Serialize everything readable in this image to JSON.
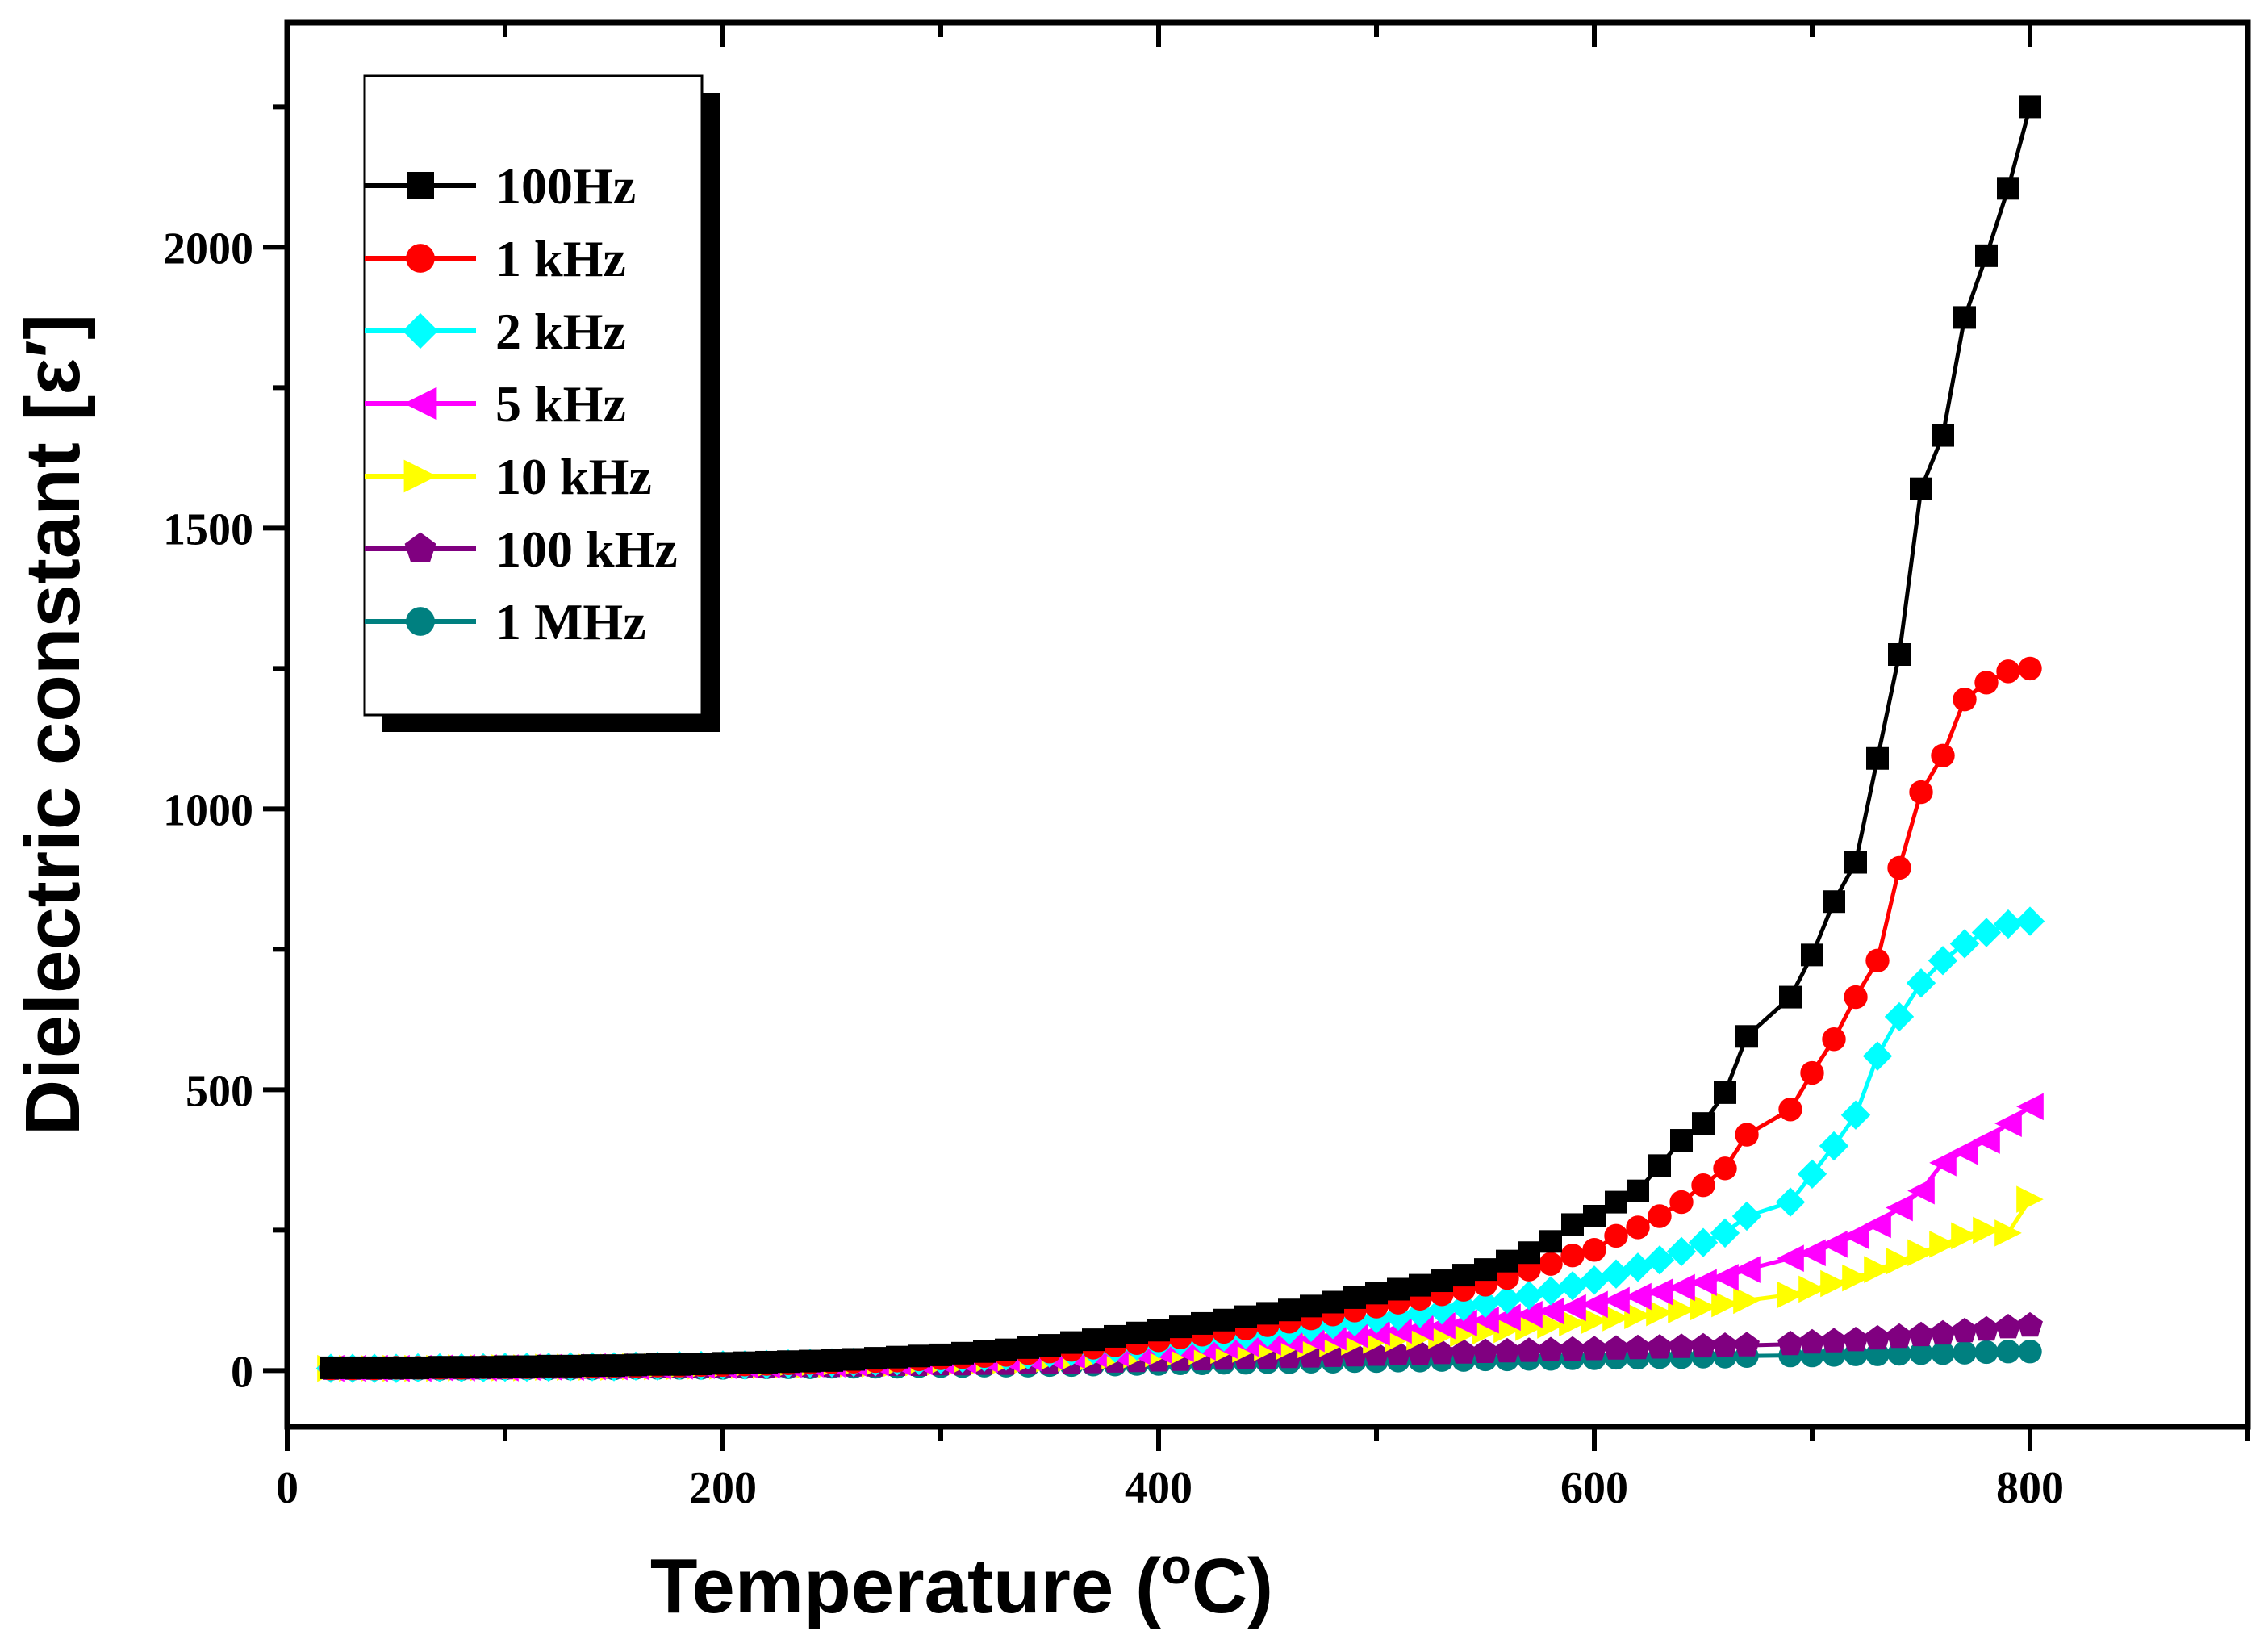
{
  "chart_data": {
    "type": "line",
    "title": "",
    "xlabel": "Temperature (",
    "xlabel_unit_sup": "o",
    "xlabel_unit": "C)",
    "ylabel": "Dielectric constant [ε′]",
    "xlim": [
      0,
      900
    ],
    "ylim": [
      -100,
      2400
    ],
    "xticks": [
      0,
      200,
      400,
      600,
      800
    ],
    "yticks": [
      0,
      500,
      1000,
      1500,
      2000
    ],
    "legend_position": "top-left",
    "x": [
      20,
      30,
      40,
      50,
      60,
      70,
      80,
      90,
      100,
      110,
      120,
      130,
      140,
      150,
      160,
      170,
      180,
      190,
      200,
      210,
      220,
      230,
      240,
      250,
      260,
      270,
      280,
      290,
      300,
      310,
      320,
      330,
      340,
      350,
      360,
      370,
      380,
      390,
      400,
      410,
      420,
      430,
      440,
      450,
      460,
      470,
      480,
      490,
      500,
      510,
      520,
      530,
      540,
      550,
      560,
      570,
      580,
      590,
      600,
      610,
      620,
      630,
      640,
      650,
      660,
      670,
      690,
      700,
      710,
      720,
      730,
      740,
      750,
      760,
      770,
      780,
      790,
      800
    ],
    "series": [
      {
        "name": "100Hz",
        "color": "#000000",
        "marker": "square",
        "values": [
          5,
          5,
          5,
          5,
          5,
          6,
          6,
          6,
          7,
          7,
          8,
          8,
          9,
          9,
          10,
          11,
          11,
          12,
          13,
          14,
          15,
          16,
          17,
          18,
          20,
          22,
          24,
          26,
          28,
          31,
          34,
          37,
          41,
          45,
          50,
          55,
          61,
          67,
          72,
          78,
          84,
          90,
          96,
          102,
          108,
          115,
          122,
          130,
          138,
          145,
          152,
          160,
          170,
          180,
          195,
          210,
          230,
          260,
          275,
          300,
          320,
          365,
          410,
          440,
          495,
          595,
          665,
          740,
          835,
          905,
          1090,
          1275,
          1570,
          1665,
          1875,
          1985,
          2105,
          2250
        ]
      },
      {
        "name": "1 kHz",
        "color": "#ff0000",
        "marker": "circle",
        "values": [
          4,
          4,
          4,
          5,
          5,
          5,
          5,
          6,
          6,
          6,
          7,
          7,
          7,
          8,
          8,
          9,
          9,
          10,
          10,
          11,
          12,
          13,
          14,
          15,
          16,
          17,
          18,
          20,
          22,
          24,
          26,
          28,
          31,
          34,
          37,
          41,
          45,
          49,
          54,
          59,
          64,
          69,
          75,
          81,
          87,
          93,
          100,
          107,
          114,
          121,
          128,
          136,
          144,
          153,
          165,
          180,
          190,
          205,
          215,
          240,
          255,
          275,
          300,
          330,
          360,
          420,
          465,
          530,
          590,
          665,
          730,
          895,
          1030,
          1095,
          1195,
          1225,
          1245,
          1250
        ]
      },
      {
        "name": "2 kHz",
        "color": "#00ffff",
        "marker": "diamond",
        "values": [
          4,
          4,
          4,
          4,
          5,
          5,
          5,
          5,
          6,
          6,
          6,
          7,
          7,
          7,
          8,
          8,
          9,
          9,
          10,
          10,
          11,
          12,
          13,
          14,
          15,
          16,
          17,
          18,
          20,
          22,
          24,
          26,
          28,
          31,
          34,
          37,
          40,
          44,
          48,
          52,
          56,
          60,
          64,
          68,
          72,
          77,
          82,
          87,
          92,
          97,
          102,
          108,
          114,
          120,
          127,
          134,
          142,
          151,
          161,
          172,
          184,
          197,
          212,
          228,
          245,
          275,
          300,
          350,
          400,
          455,
          560,
          630,
          690,
          730,
          760,
          780,
          795,
          800
        ]
      },
      {
        "name": "5 kHz",
        "color": "#ff00ff",
        "marker": "triangle-left",
        "values": [
          4,
          4,
          4,
          4,
          4,
          5,
          5,
          5,
          5,
          6,
          6,
          6,
          7,
          7,
          7,
          8,
          8,
          9,
          9,
          10,
          10,
          11,
          12,
          12,
          13,
          14,
          15,
          16,
          17,
          18,
          20,
          21,
          23,
          25,
          27,
          29,
          31,
          34,
          36,
          39,
          42,
          45,
          48,
          51,
          54,
          57,
          60,
          64,
          68,
          72,
          76,
          80,
          85,
          90,
          95,
          100,
          106,
          112,
          118,
          125,
          132,
          140,
          148,
          157,
          166,
          180,
          200,
          210,
          225,
          240,
          260,
          290,
          320,
          370,
          390,
          410,
          440,
          470
        ]
      },
      {
        "name": "10 kHz",
        "color": "#ffff00",
        "marker": "triangle-right",
        "values": [
          4,
          4,
          4,
          4,
          4,
          4,
          5,
          5,
          5,
          5,
          6,
          6,
          6,
          6,
          7,
          7,
          7,
          8,
          8,
          9,
          9,
          10,
          10,
          11,
          12,
          12,
          13,
          14,
          15,
          16,
          17,
          18,
          19,
          21,
          22,
          24,
          26,
          28,
          30,
          32,
          34,
          36,
          38,
          41,
          43,
          46,
          48,
          51,
          54,
          57,
          60,
          63,
          66,
          70,
          73,
          77,
          81,
          85,
          89,
          94,
          98,
          103,
          108,
          113,
          119,
          125,
          135,
          145,
          155,
          165,
          180,
          195,
          210,
          225,
          240,
          250,
          245,
          305
        ]
      },
      {
        "name": "100 kHz",
        "color": "#800080",
        "marker": "pentagon",
        "values": [
          3,
          3,
          3,
          3,
          4,
          4,
          4,
          4,
          4,
          5,
          5,
          5,
          5,
          5,
          6,
          6,
          6,
          6,
          7,
          7,
          7,
          8,
          8,
          8,
          9,
          9,
          10,
          10,
          11,
          11,
          12,
          12,
          13,
          14,
          14,
          15,
          16,
          17,
          18,
          19,
          20,
          21,
          22,
          23,
          24,
          25,
          26,
          27,
          28,
          29,
          30,
          31,
          32,
          33,
          34,
          35,
          36,
          37,
          38,
          39,
          40,
          41,
          42,
          43,
          44,
          45,
          47,
          50,
          52,
          54,
          57,
          60,
          63,
          66,
          70,
          73,
          77,
          80
        ]
      },
      {
        "name": "1 MHz",
        "color": "#008080",
        "marker": "circle",
        "values": [
          3,
          3,
          3,
          3,
          3,
          3,
          3,
          4,
          4,
          4,
          4,
          4,
          4,
          4,
          5,
          5,
          5,
          5,
          5,
          6,
          6,
          6,
          6,
          7,
          7,
          7,
          7,
          8,
          8,
          8,
          9,
          9,
          9,
          10,
          10,
          11,
          11,
          12,
          12,
          13,
          13,
          14,
          14,
          15,
          15,
          16,
          16,
          17,
          17,
          18,
          18,
          19,
          19,
          20,
          20,
          21,
          21,
          22,
          22,
          23,
          23,
          24,
          24,
          25,
          25,
          26,
          27,
          27,
          28,
          29,
          29,
          30,
          31,
          31,
          32,
          33,
          34,
          34
        ]
      }
    ]
  }
}
